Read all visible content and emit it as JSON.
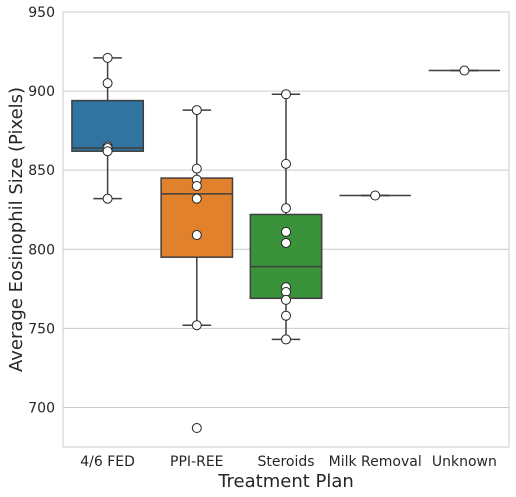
{
  "chart_data": {
    "type": "box",
    "xlabel": "Treatment Plan",
    "ylabel": "Average Eosinophil Size (Pixels)",
    "ylim": [
      675,
      950
    ],
    "yticks": [
      700,
      750,
      800,
      850,
      900,
      950
    ],
    "grid": "horizontal",
    "categories": [
      {
        "name": "4/6 FED",
        "color": "#3274a1",
        "q1": 862,
        "median": 864,
        "q3": 894,
        "whisker_low": 832,
        "whisker_high": 921,
        "points": [
          921,
          905,
          865,
          864,
          862,
          832
        ]
      },
      {
        "name": "PPI-REE",
        "color": "#e1812c",
        "q1": 795,
        "median": 835,
        "q3": 845,
        "whisker_low": 752,
        "whisker_high": 888,
        "points": [
          888,
          851,
          844,
          840,
          832,
          809,
          752,
          687
        ]
      },
      {
        "name": "Steroids",
        "color": "#3a923a",
        "q1": 769,
        "median": 789,
        "q3": 822,
        "whisker_low": 743,
        "whisker_high": 898,
        "points": [
          898,
          854,
          826,
          811,
          804,
          776,
          773,
          768,
          758,
          743
        ]
      },
      {
        "name": "Milk Removal",
        "color": "#c03d3e",
        "q1": 834,
        "median": 834,
        "q3": 834,
        "whisker_low": 834,
        "whisker_high": 834,
        "points": [
          834
        ]
      },
      {
        "name": "Unknown",
        "color": "#9372b2",
        "q1": 913,
        "median": 913,
        "q3": 913,
        "whisker_low": 913,
        "whisker_high": 913,
        "points": [
          913
        ]
      }
    ]
  }
}
